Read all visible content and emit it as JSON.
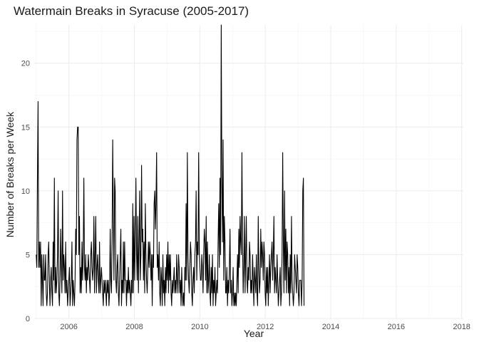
{
  "chart_data": {
    "type": "line",
    "title": "Watermain Breaks in Syracuse (2005-2017)",
    "xlabel": "Year",
    "ylabel": "Number of Breaks per Week",
    "xlim": [
      2004.94,
      2018.05
    ],
    "ylim": [
      0,
      23
    ],
    "x_ticks": [
      2006,
      2008,
      2010,
      2012,
      2014,
      2016,
      2018
    ],
    "y_ticks": [
      0,
      5,
      10,
      15,
      20
    ],
    "grid": true,
    "legend": "none",
    "x_start": 2005.0,
    "x_step_weeks": 1,
    "series": [
      {
        "values": [
          5,
          4,
          11,
          17,
          4,
          6,
          4,
          6,
          1,
          5,
          3,
          1,
          5,
          3,
          3,
          5,
          2,
          1,
          2,
          5,
          6,
          3,
          1,
          3,
          4,
          2,
          1,
          6,
          3,
          11,
          2,
          4,
          2,
          3,
          5,
          10,
          2,
          1,
          3,
          7,
          4,
          2,
          10,
          3,
          5,
          4,
          2,
          6,
          2,
          3,
          1,
          2,
          3,
          4,
          1,
          2,
          3,
          6,
          1,
          3,
          2,
          1,
          3,
          7,
          5,
          14,
          15,
          15,
          5,
          8,
          2,
          4,
          2,
          6,
          3,
          5,
          11,
          4,
          3,
          5,
          2,
          4,
          3,
          5,
          4,
          3,
          2,
          5,
          6,
          4,
          3,
          4,
          8,
          2,
          5,
          8,
          2,
          4,
          5,
          3,
          2,
          6,
          2,
          3,
          4,
          3,
          2,
          1,
          3,
          2,
          3,
          2,
          1,
          3,
          2,
          3,
          1,
          2,
          7,
          3,
          2,
          6,
          14,
          8,
          3,
          11,
          10,
          3,
          2,
          4,
          5,
          2,
          1,
          3,
          5,
          7,
          1,
          3,
          2,
          6,
          2,
          6,
          3,
          3,
          1,
          3,
          2,
          4,
          2,
          3,
          2,
          1,
          3,
          2,
          9,
          2,
          8,
          3,
          6,
          11,
          5,
          3,
          8,
          2,
          6,
          10,
          3,
          5,
          12,
          6,
          7,
          3,
          6,
          2,
          9,
          5,
          3,
          2,
          4,
          6,
          4,
          6,
          5,
          3,
          5,
          1,
          5,
          4,
          9,
          10,
          7,
          9,
          13,
          4,
          5,
          3,
          6,
          2,
          1,
          4,
          3,
          1,
          5,
          2,
          3,
          1,
          4,
          2,
          5,
          3,
          6,
          2,
          5,
          3,
          5,
          2,
          1,
          3,
          2,
          3,
          4,
          2,
          3,
          2,
          5,
          3,
          2,
          5,
          4,
          2,
          3,
          1,
          4,
          2,
          1,
          2,
          1,
          4,
          3,
          9,
          3,
          13,
          5,
          3,
          2,
          4,
          6,
          5,
          2,
          1,
          3,
          4,
          2,
          5,
          6,
          10,
          3,
          6,
          5,
          13,
          5,
          4,
          3,
          3,
          5,
          4,
          2,
          5,
          7,
          6,
          3,
          8,
          2,
          6,
          2,
          3,
          5,
          2,
          1,
          4,
          2,
          5,
          1,
          3,
          2,
          4,
          1,
          2,
          3,
          2,
          6,
          9,
          4,
          11,
          5,
          23,
          11,
          6,
          14,
          3,
          8,
          6,
          2,
          2,
          4,
          1,
          3,
          2,
          4,
          7,
          2,
          3,
          1,
          2,
          4,
          1,
          2,
          1,
          2,
          1,
          3,
          5,
          2,
          7,
          4,
          8,
          6,
          5,
          13,
          6,
          2,
          4,
          8,
          2,
          5,
          8,
          3,
          2,
          4,
          3,
          6,
          5,
          2,
          3,
          2,
          5,
          3,
          1,
          4,
          3,
          2,
          5,
          2,
          1,
          8,
          4,
          2,
          3,
          7,
          4,
          6,
          5,
          3,
          6,
          5,
          2,
          1,
          4,
          2,
          4,
          1,
          3,
          5,
          2,
          4,
          5,
          6,
          3,
          5,
          8,
          2,
          4,
          3,
          2,
          5,
          3,
          1,
          2,
          3,
          4,
          1,
          2,
          5,
          13,
          6,
          2,
          10,
          3,
          7,
          2,
          6,
          5,
          2,
          4,
          1,
          5,
          2,
          8,
          3,
          2,
          1,
          2,
          5,
          4,
          3,
          2,
          5,
          4,
          2,
          1,
          3,
          3,
          3,
          1,
          3,
          10,
          11,
          1
        ]
      }
    ]
  }
}
